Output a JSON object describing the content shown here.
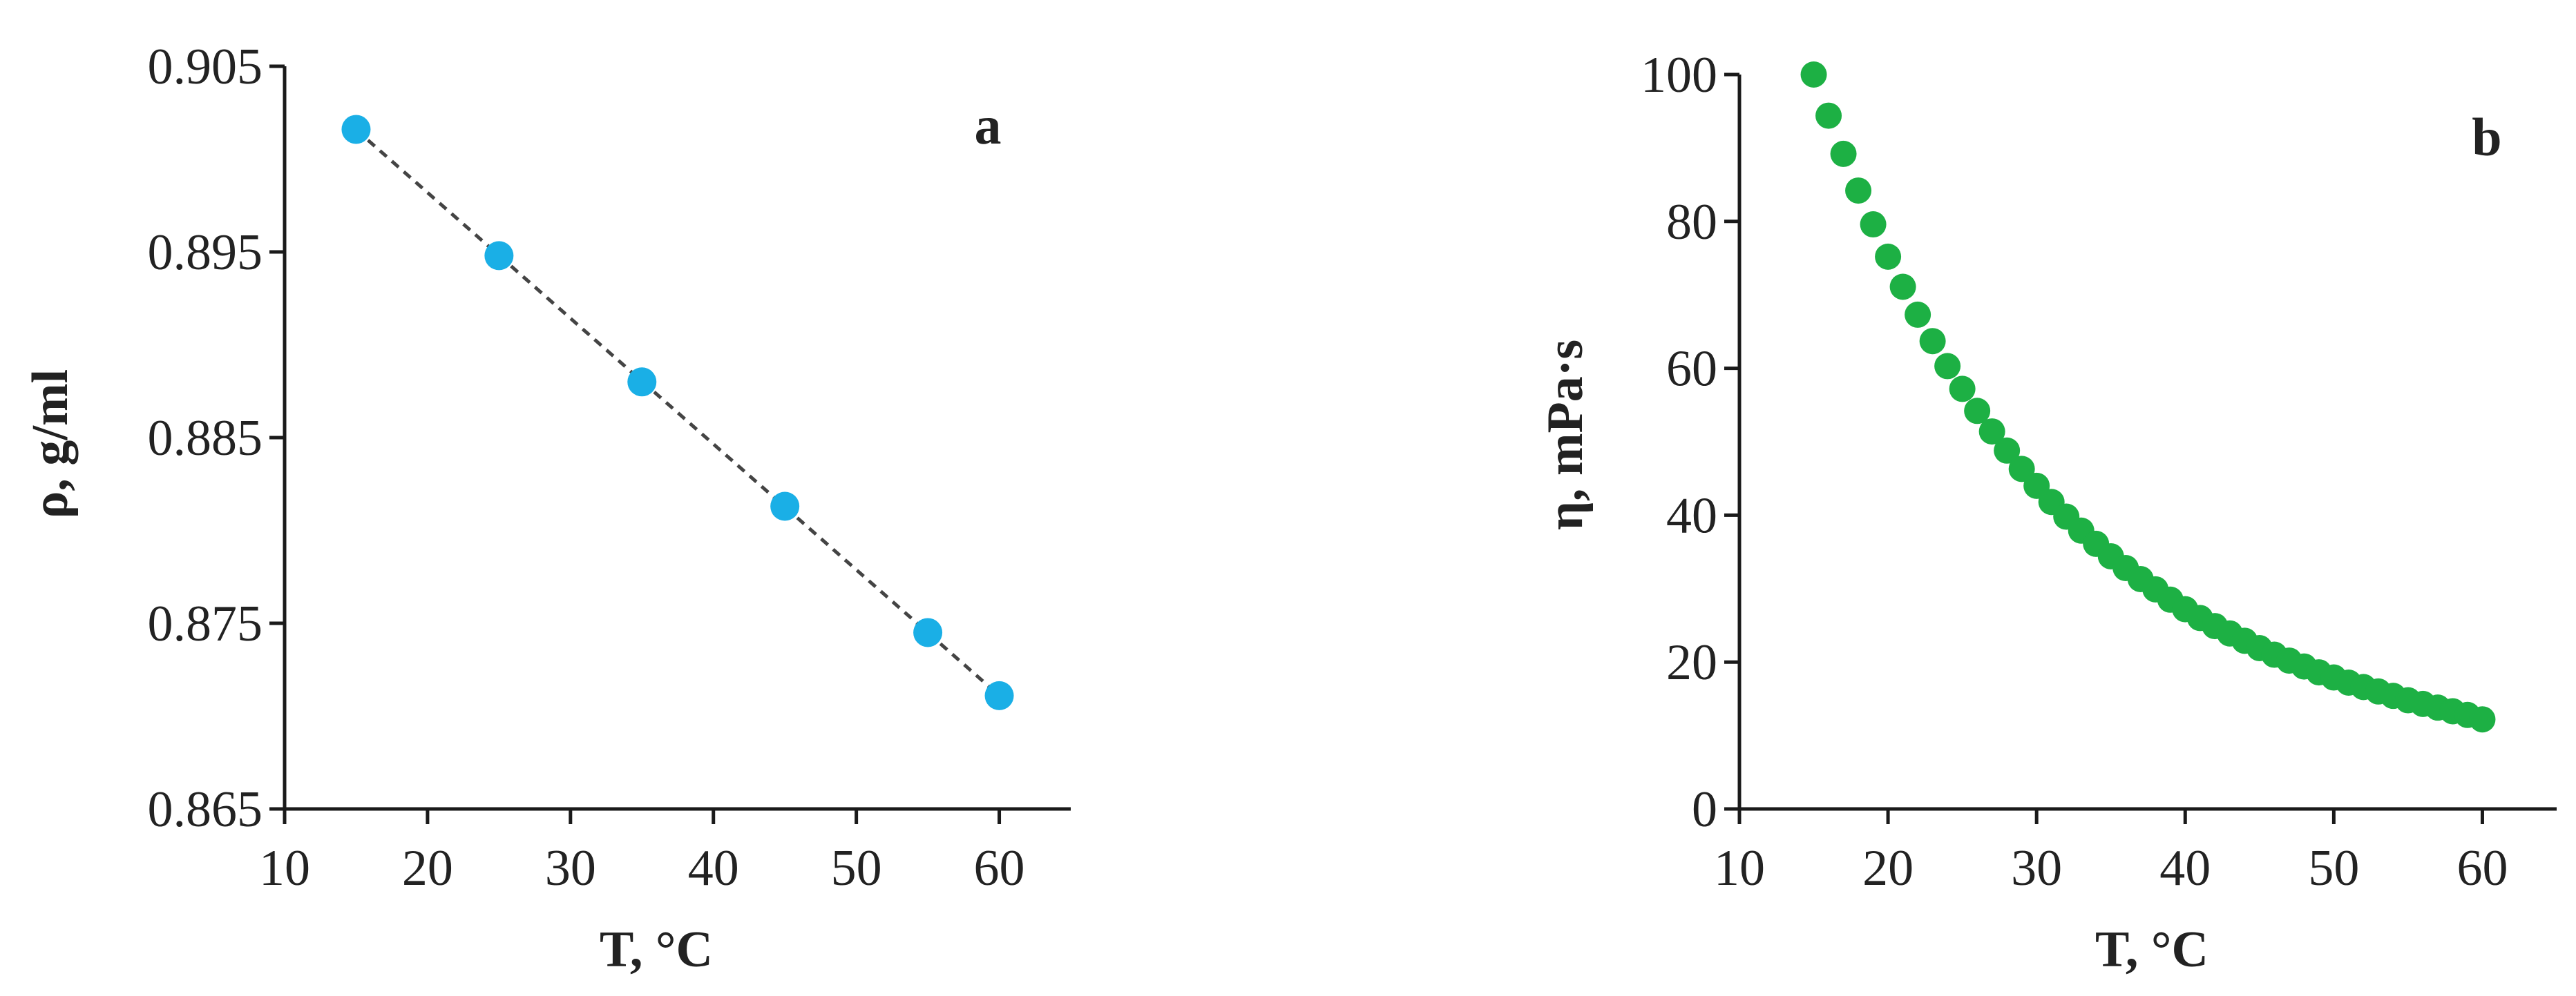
{
  "chart_data": [
    {
      "type": "scatter",
      "panel_label": "a",
      "xlabel": "T, °C",
      "ylabel": "ρ, g/ml",
      "xlim": [
        10,
        65
      ],
      "ylim": [
        0.865,
        0.905
      ],
      "x_ticks": [
        "10",
        "20",
        "30",
        "40",
        "50",
        "60"
      ],
      "y_ticks": [
        "0.865",
        "0.875",
        "0.885",
        "0.895",
        "0.905"
      ],
      "trendline": "linear (dashed)",
      "marker_color": "#1aafe6",
      "series": [
        {
          "x": [
            15,
            25,
            35,
            45,
            55,
            60
          ],
          "y": [
            0.9016,
            0.8948,
            0.888,
            0.8813,
            0.8745,
            0.8711
          ]
        }
      ]
    },
    {
      "type": "scatter",
      "panel_label": "b",
      "xlabel": "T, °C",
      "ylabel": "η, mPa·s",
      "xlim": [
        10,
        65
      ],
      "ylim": [
        0,
        100
      ],
      "x_ticks": [
        "10",
        "20",
        "30",
        "40",
        "50",
        "60"
      ],
      "y_ticks": [
        "0",
        "20",
        "40",
        "60",
        "80",
        "100"
      ],
      "marker_color": "#1db044",
      "series": [
        {
          "x": [
            15,
            16,
            17,
            18,
            19,
            20,
            21,
            22,
            23,
            24,
            25,
            26,
            27,
            28,
            29,
            30,
            31,
            32,
            33,
            34,
            35,
            36,
            37,
            38,
            39,
            40,
            41,
            42,
            43,
            44,
            45,
            46,
            47,
            48,
            49,
            50,
            51,
            52,
            53,
            54,
            55,
            56,
            57,
            58,
            59,
            60
          ],
          "y": [
            100.0,
            94.4,
            89.2,
            84.2,
            79.6,
            75.2,
            71.1,
            67.3,
            63.7,
            60.3,
            57.2,
            54.2,
            51.4,
            48.8,
            46.3,
            44.0,
            41.8,
            39.8,
            37.9,
            36.1,
            34.4,
            32.8,
            31.3,
            29.9,
            28.5,
            27.2,
            26.0,
            24.9,
            23.9,
            22.9,
            21.9,
            21.0,
            20.2,
            19.4,
            18.6,
            17.9,
            17.2,
            16.6,
            16.0,
            15.4,
            14.8,
            14.3,
            13.8,
            13.3,
            12.8,
            12.2
          ]
        }
      ]
    }
  ]
}
